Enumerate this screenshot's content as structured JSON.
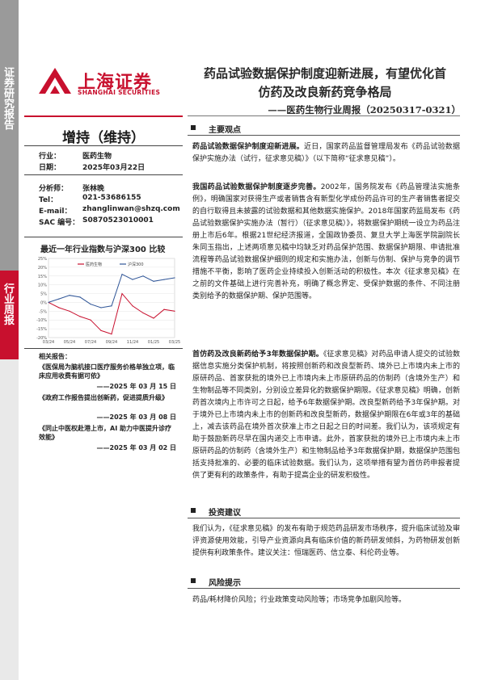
{
  "sidebar": {
    "top_text": "证券研究报告",
    "section_text": "行业周报"
  },
  "logo": {
    "cn": "上海证券",
    "en": "SHANGHAI SECURITIES"
  },
  "header": {
    "title_line1": "药品试验数据保护制度迎新进展，有望优化首",
    "title_line2": "仿药及改良新药竞争格局",
    "subtitle": "——医药生物行业周报（20250317-0321）"
  },
  "rating": "增持（维持）",
  "info": {
    "industry_label": "行业：",
    "industry_value": "医药生物",
    "date_label": "日期：",
    "date_value": "2025年03月22日",
    "analyst_label": "分析师：",
    "analyst_value": "张林晚",
    "tel_label": "Tel：",
    "tel_value": "021-53686155",
    "email_label": "E-mail：",
    "email_value": "zhanglinwan@shzq.com",
    "sac_label": "SAC 编号：",
    "sac_value": "S0870523010001"
  },
  "chart": {
    "title": "最近一年行业指数与沪深300 比较"
  },
  "chart_data": {
    "type": "line",
    "x": [
      "24-03",
      "24-04",
      "24-05",
      "24-06",
      "24-07",
      "24-08",
      "24-09",
      "24-10",
      "24-11",
      "24-12",
      "25-01",
      "25-02",
      "25-03"
    ],
    "series": [
      {
        "name": "医药生物",
        "color": "#c8102e",
        "values": [
          0,
          -3,
          -5,
          -8,
          -10,
          -16,
          -18,
          5,
          -2,
          -6,
          -9,
          -4,
          -5
        ]
      },
      {
        "name": "沪深300",
        "color": "#2f5597",
        "values": [
          0,
          2,
          4,
          3,
          -1,
          -3,
          -2,
          16,
          13,
          15,
          12,
          13,
          14
        ]
      }
    ],
    "ylim": [
      -20,
      25
    ],
    "yticks": [
      "25%",
      "20%",
      "15%",
      "10%",
      "5%",
      "0%",
      "-5%",
      "-10%",
      "-15%",
      "-20%"
    ],
    "xticks": [
      "03/24",
      "05/24",
      "07/24",
      "09/24",
      "11/24",
      "01/25",
      "03/25"
    ]
  },
  "related": {
    "head": "相关报告：",
    "items": [
      {
        "title": "《医保局为脑机接口医疗服务价格单独立项，临床应用收费有据可依》",
        "date": "——2025 年 03 月 15 日"
      },
      {
        "title": "《政府工作报告提出创新药，促进提质升级》",
        "date": "——2025 年 03 月 08 日"
      },
      {
        "title": "《同止中医权赴港上市，AI 助力中医提升诊疗效能》",
        "date": "——2025 年 03 月 02 日"
      }
    ]
  },
  "sections": {
    "main_title": "主要观点",
    "invest_title": "投资建议",
    "risk_title": "风险提示"
  },
  "paragraphs": {
    "p1_bold": "药品试验数据保护制度迎新进展。",
    "p1": "近日，国家药品监督管理局发布《药品试验数据保护实施办法（试行，征求意见稿）》（以下简称“征求意见稿”）。",
    "p2_bold": "我国药品试验数据保护制度逐步完善。",
    "p2": "2002年，国务院发布《药品管理法实施条例》，明确国家对获得生产或者销售含有新型化学成份药品许可的生产者销售者提交的自行取得且未披露的试验数据和其他数据实施保护。2018年国家药监局发布《药品试验数据保护实施办法（暂行）（征求意见稿）》，将数据保护期统一设立为药品注册上市后6年。根据21世纪经济报道，全国政协委员、复旦大学上海医学院副院长朱同玉指出，上述两项意见稿中均缺乏对药品保护范围、数据保护期限、申请批准流程等药品试验数据保护细则的规定和实施办法，创新与仿制、保护与竞争的调节措施不平衡，影响了医药企业持续投入创新活动的积极性。本次《征求意见稿》在之前的文件基础上进行完善补充，明确了概念界定、受保护数据的条件、不同注册类别给予的数据保护期、保护范围等。",
    "p3_bold": "首仿药及改良新药给予3年数据保护期。",
    "p3": "《征求意见稿》对药品申请人提交的试验数据信息实施分类保护机制，将按照创新药和改良型新药、境外已上市境内未上市的原研药品、首家获批的境外已上市境内未上市原研药品的仿制药（含境外生产）和生物制品等不同类别，分别设立差异化的数据保护期限。《征求意见稿》明确，创新药首次境内上市许可之日起，给予6年数据保护期。改良型新药给予3年保护期。对于境外已上市境内未上市的创新药和改良型新药，数据保护期限在6年或3年的基础上，减去该药品在境外首次获准上市之日起之日的时间差。我们认为，该项规定有助于鼓励新药尽早在国内递交上市申请。此外，首家获批的境外已上市境内未上市原研药品的仿制药（含境外生产）和生物制品给予3年数据保护期，数据保护范围包括支持批准的、必要的临床试验数据。我们认为，这项举措有望为首仿药申报者提供了更有利的政策条件，有助于提高企业的研发积极性。",
    "p4": "我们认为，《征求意见稿》的发布有助于规范药品研发市场秩序，提升临床试验及审评资源使用效能，引导产业资源向具有临床价值的新药研发倾斜，为药物研发创新提供有利政策条件。建议关注：恒瑞医药、信立泰、科伦药业等。",
    "p5": "药品/耗材降价风险；行业政策变动风险等；市场竞争加剧风险等。"
  }
}
